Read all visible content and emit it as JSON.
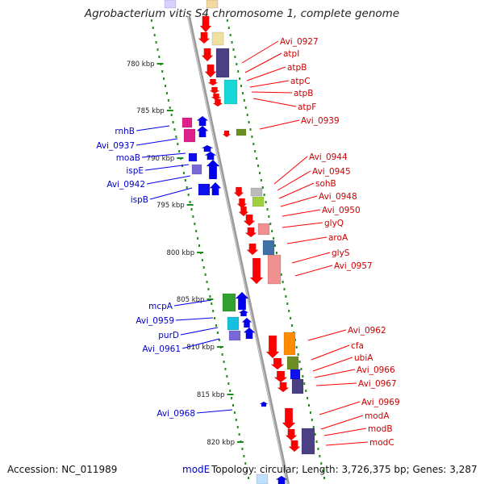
{
  "title": "Agrobacterium vitis S4 chromosome 1, complete genome",
  "footer": {
    "accession_label": "Accession:",
    "accession": "NC_011989",
    "topology_text": "Topology: circular; Length: 3,726,375 bp; Genes: 3,287",
    "cut_label": "modE"
  },
  "colors": {
    "forward": "#ff0000",
    "reverse": "#0000ee",
    "backbone": "#888888",
    "tick_dots": "#1e8c1e"
  },
  "ticks": [
    "780 kbp",
    "785 kbp",
    "790 kbp",
    "795 kbp",
    "800 kbp",
    "805 kbp",
    "810 kbp",
    "815 kbp",
    "820 kbp"
  ],
  "left_labels": [
    "rnhB",
    "Avi_0937",
    "moaB",
    "ispE",
    "Avi_0942",
    "ispB",
    "mcpA",
    "Avi_0959",
    "purD",
    "Avi_0961",
    "Avi_0968"
  ],
  "right_labels": [
    "Avi_0927",
    "atpI",
    "atpB",
    "atpC",
    "atpB",
    "atpF",
    "Avi_0939",
    "Avi_0944",
    "Avi_0945",
    "sohB",
    "Avi_0948",
    "Avi_0950",
    "glyQ",
    "aroA",
    "glyS",
    "Avi_0957",
    "Avi_0962",
    "cfa",
    "ubiA",
    "Avi_0966",
    "Avi_0967",
    "Avi_0969",
    "modA",
    "modB",
    "modC"
  ]
}
